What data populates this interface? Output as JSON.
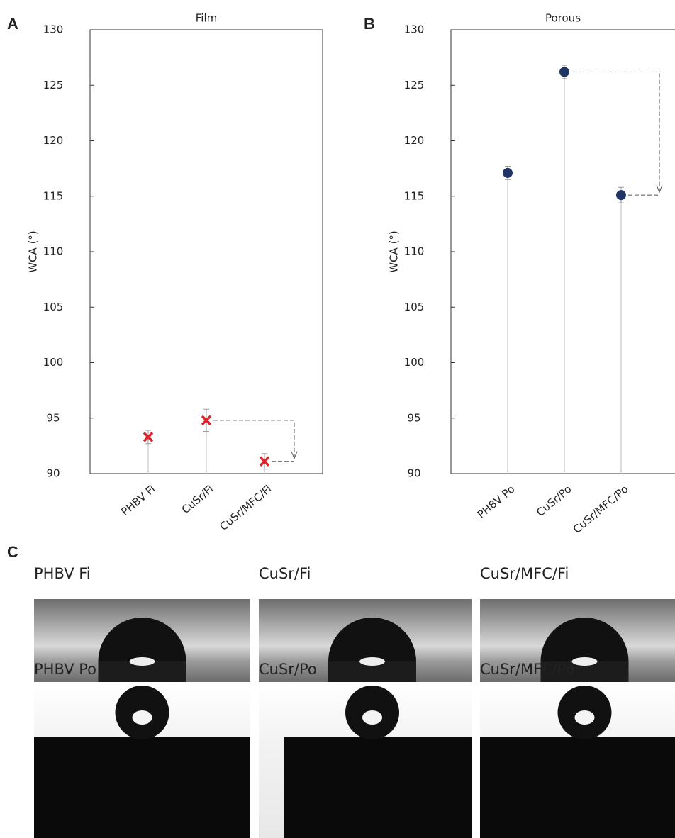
{
  "panel_labels": [
    "A",
    "B",
    "C"
  ],
  "chart_data": [
    {
      "type": "lollipop",
      "title": "Film",
      "y_label": "WCA (°)",
      "categories": [
        "PHBV Fi",
        "CuSr/Fi",
        "CuSr/MFC/Fi"
      ],
      "series": [
        {
          "marker": "x",
          "color": "#e0262b",
          "values": [
            93.3,
            94.8,
            91.1
          ],
          "errors": [
            0.6,
            1.0,
            0.7
          ]
        }
      ],
      "ylim": [
        90,
        130
      ],
      "yticks": [
        90,
        95,
        100,
        105,
        110,
        115,
        120,
        125,
        130
      ]
    },
    {
      "type": "lollipop",
      "title": "Porous",
      "y_label": "WCA (°)",
      "categories": [
        "PHBV Po",
        "CuSr/Po",
        "CuSr/MFC/Po"
      ],
      "series": [
        {
          "marker": "circle",
          "color": "#1f3566",
          "values": [
            117.1,
            126.2,
            115.1
          ],
          "errors": [
            0.6,
            0.6,
            0.7
          ]
        }
      ],
      "ylim": [
        90,
        130
      ],
      "yticks": [
        90,
        95,
        100,
        105,
        110,
        115,
        120,
        125,
        130
      ]
    }
  ],
  "photos": {
    "labels": [
      "PHBV Fi",
      "CuSr/Fi",
      "CuSr/MFC/Fi",
      "PHBV Po",
      "CuSr/Po",
      "CuSr/MFC/Po"
    ]
  }
}
